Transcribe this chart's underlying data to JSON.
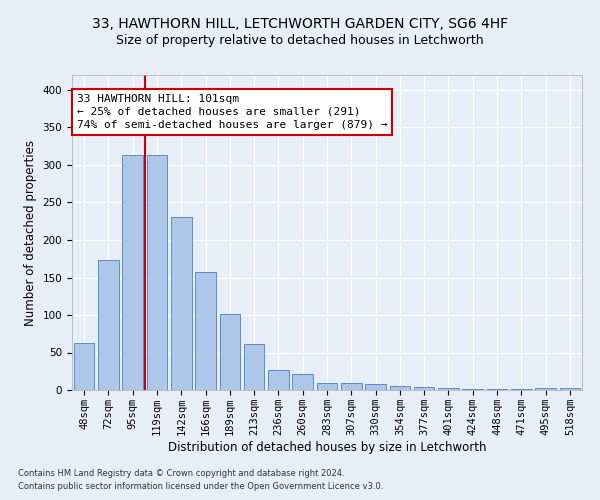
{
  "title1": "33, HAWTHORN HILL, LETCHWORTH GARDEN CITY, SG6 4HF",
  "title2": "Size of property relative to detached houses in Letchworth",
  "xlabel": "Distribution of detached houses by size in Letchworth",
  "ylabel": "Number of detached properties",
  "categories": [
    "48sqm",
    "72sqm",
    "95sqm",
    "119sqm",
    "142sqm",
    "166sqm",
    "189sqm",
    "213sqm",
    "236sqm",
    "260sqm",
    "283sqm",
    "307sqm",
    "330sqm",
    "354sqm",
    "377sqm",
    "401sqm",
    "424sqm",
    "448sqm",
    "471sqm",
    "495sqm",
    "518sqm"
  ],
  "values": [
    63,
    174,
    313,
    313,
    230,
    157,
    102,
    62,
    27,
    21,
    10,
    10,
    8,
    6,
    4,
    3,
    2,
    2,
    2,
    3,
    3
  ],
  "bar_color": "#aec6e8",
  "bar_edge_color": "#5a8fc2",
  "vline_x": 2.5,
  "vline_color": "#cc0000",
  "annotation_text": "33 HAWTHORN HILL: 101sqm\n← 25% of detached houses are smaller (291)\n74% of semi-detached houses are larger (879) →",
  "annotation_box_color": "white",
  "annotation_box_edge_color": "#cc0000",
  "ylim": [
    0,
    420
  ],
  "yticks": [
    0,
    50,
    100,
    150,
    200,
    250,
    300,
    350,
    400
  ],
  "footnote1": "Contains HM Land Registry data © Crown copyright and database right 2024.",
  "footnote2": "Contains public sector information licensed under the Open Government Licence v3.0.",
  "background_color": "#e8eef7",
  "plot_background_color": "#e8eef7",
  "grid_color": "#ffffff",
  "title_fontsize": 10,
  "subtitle_fontsize": 9,
  "axis_label_fontsize": 8.5,
  "tick_fontsize": 7.5,
  "annotation_fontsize": 8,
  "footnote_fontsize": 6
}
